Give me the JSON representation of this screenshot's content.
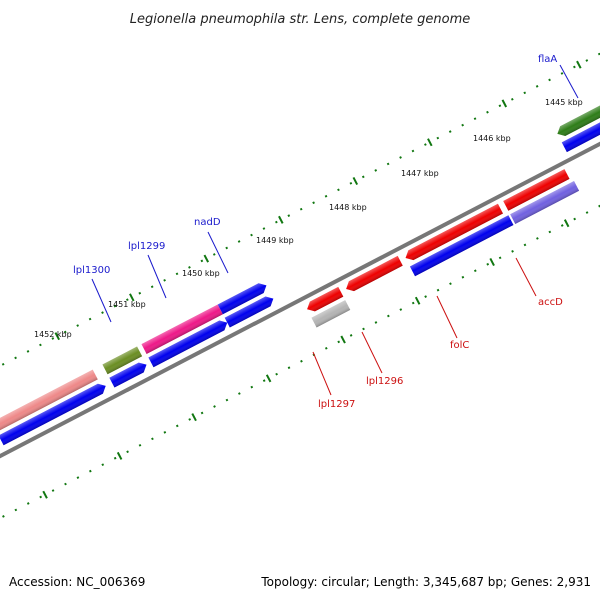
{
  "title": "Legionella pneumophila str. Lens, complete genome",
  "footer": {
    "accession": "Accession: NC_006369",
    "summary": "Topology: circular; Length: 3,345,687 bp; Genes: 2,931"
  },
  "ticks": [
    "1445 kbp",
    "1446 kbp",
    "1447 kbp",
    "1448 kbp",
    "1449 kbp",
    "1450 kbp",
    "1451 kbp",
    "1452 kbp"
  ],
  "gene_labels": {
    "flaA": "flaA",
    "nadD": "nadD",
    "lpl1299": "lpl1299",
    "lpl1300": "lpl1300",
    "accD": "accD",
    "folC": "folC",
    "lpl1296": "lpl1296",
    "lpl1297": "lpl1297"
  },
  "colors": {
    "blue": "#0000ee",
    "red": "#ee0000",
    "green": "#2e7d18",
    "olive": "#6b8e23",
    "magenta": "#ee1888",
    "salmon": "#ee8888",
    "lavender": "#7060e0",
    "grey": "#b4b4b4",
    "backbone": "#777777",
    "tick": "#117711"
  }
}
